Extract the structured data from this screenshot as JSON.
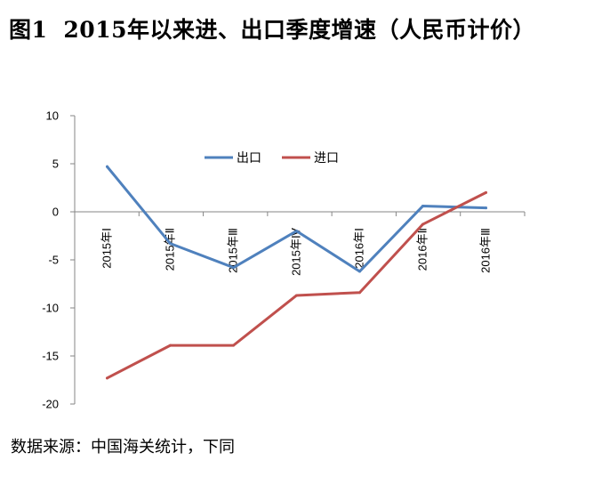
{
  "title": {
    "figure_label": "图1",
    "text": "2015年以来进、出口季度增速（人民币计价）"
  },
  "source_note": "数据来源：中国海关统计，下同",
  "chart_data": {
    "type": "line",
    "categories": [
      "2015年Ⅰ",
      "2015年Ⅱ",
      "2015年Ⅲ",
      "2015年Ⅳ",
      "2016年Ⅰ",
      "2016年Ⅱ",
      "2016年Ⅲ"
    ],
    "series": [
      {
        "name": "出口",
        "color": "#4F81BD",
        "values": [
          4.7,
          -3.3,
          -5.8,
          -2.0,
          -6.2,
          0.6,
          0.4
        ]
      },
      {
        "name": "进口",
        "color": "#C0504D",
        "values": [
          -17.3,
          -13.9,
          -13.9,
          -8.7,
          -8.4,
          -1.3,
          2.0
        ]
      }
    ],
    "ylim": [
      -20,
      10
    ],
    "yticks": [
      10,
      5,
      0,
      -5,
      -10,
      -15,
      -20
    ],
    "xlabel": "",
    "ylabel": "",
    "grid": false,
    "legend_position": "top-center"
  }
}
